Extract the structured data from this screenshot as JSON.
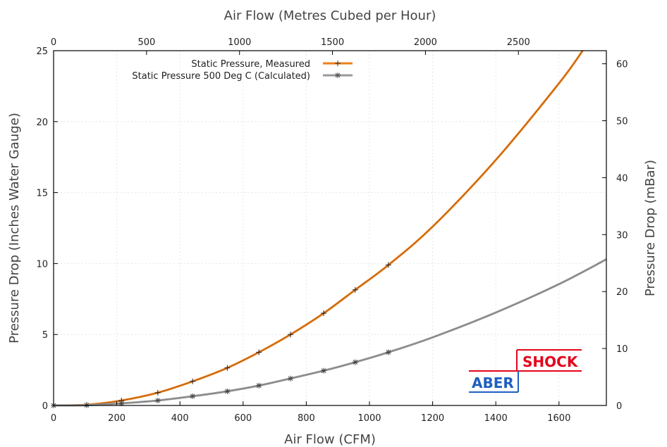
{
  "chart_data": {
    "type": "line",
    "title": "",
    "xlabel": "Air Flow (CFM)",
    "ylabel": "Pressure Drop (Inches Water Gauge)",
    "x2label": "Air Flow (Metres Cubed per Hour)",
    "y2label": "Pressure Drop (mBar)",
    "xlim": [
      0,
      1750
    ],
    "ylim": [
      0,
      25
    ],
    "x2lim": [
      0,
      2973
    ],
    "y2lim": [
      0,
      62.3
    ],
    "x_ticks": [
      0,
      200,
      400,
      600,
      800,
      1000,
      1200,
      1400,
      1600
    ],
    "y_ticks": [
      0,
      5,
      10,
      15,
      20,
      25
    ],
    "x2_ticks": [
      0,
      500,
      1000,
      1500,
      2000,
      2500
    ],
    "y2_ticks": [
      0,
      10,
      20,
      30,
      40,
      50,
      60
    ],
    "grid": true,
    "legend_position": "top-center",
    "series": [
      {
        "name": "Static Pressure, Measured",
        "color": "#f07f1a",
        "marker": "+",
        "x": [
          0,
          105,
          215,
          330,
          440,
          550,
          650,
          750,
          855,
          955,
          1060,
          1200,
          1400,
          1600,
          1675
        ],
        "y": [
          0,
          0.05,
          0.35,
          0.9,
          1.7,
          2.65,
          3.75,
          5.0,
          6.5,
          8.15,
          9.9,
          12.6,
          17.3,
          22.7,
          25.0
        ]
      },
      {
        "name": "Static Pressure 500 Deg C (Calculated)",
        "color": "#999999",
        "marker": "*",
        "x": [
          0,
          105,
          215,
          330,
          440,
          550,
          650,
          750,
          855,
          955,
          1060,
          1200,
          1400,
          1600,
          1750
        ],
        "y": [
          0,
          0.02,
          0.15,
          0.35,
          0.65,
          1.0,
          1.4,
          1.9,
          2.45,
          3.05,
          3.75,
          4.8,
          6.55,
          8.55,
          10.3
        ]
      }
    ]
  },
  "logo": {
    "top_word": "SHOCK",
    "bottom_word": "ABER",
    "top_color": "#e3051b",
    "bottom_color": "#1f5fbf"
  }
}
